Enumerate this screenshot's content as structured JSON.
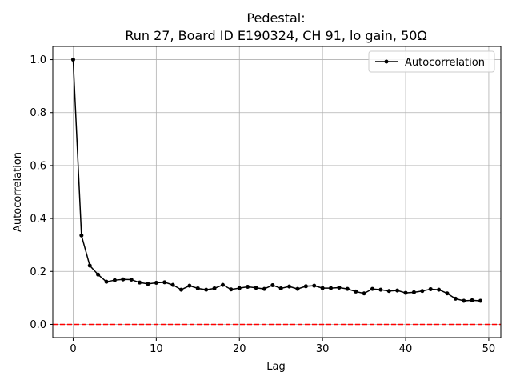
{
  "chart_data": {
    "type": "line",
    "title_line1": "Pedestal:",
    "title_line2": "Run 27, Board ID E190324, CH 91, lo gain, 50Ω",
    "xlabel": "Lag",
    "ylabel": "Autocorrelation",
    "xlim": [
      -2.45,
      51.45
    ],
    "ylim": [
      -0.05,
      1.05
    ],
    "x_ticks": [
      0,
      10,
      20,
      30,
      40,
      50
    ],
    "y_ticks": [
      0.0,
      0.2,
      0.4,
      0.6,
      0.8,
      1.0
    ],
    "x_tick_labels": [
      "0",
      "10",
      "20",
      "30",
      "40",
      "50"
    ],
    "y_tick_labels": [
      "0.0",
      "0.2",
      "0.4",
      "0.6",
      "0.8",
      "1.0"
    ],
    "grid": true,
    "legend_position": "top-right",
    "series": [
      {
        "name": "Autocorrelation",
        "color": "#000000",
        "marker": "circle",
        "x": [
          0,
          1,
          2,
          3,
          4,
          5,
          6,
          7,
          8,
          9,
          10,
          11,
          12,
          13,
          14,
          15,
          16,
          17,
          18,
          19,
          20,
          21,
          22,
          23,
          24,
          25,
          26,
          27,
          28,
          29,
          30,
          31,
          32,
          33,
          34,
          35,
          36,
          37,
          38,
          39,
          40,
          41,
          42,
          43,
          44,
          45,
          46,
          47,
          48,
          49
        ],
        "values": [
          1.0,
          0.336,
          0.222,
          0.188,
          0.161,
          0.167,
          0.17,
          0.169,
          0.158,
          0.153,
          0.157,
          0.159,
          0.149,
          0.131,
          0.146,
          0.136,
          0.131,
          0.136,
          0.149,
          0.132,
          0.137,
          0.142,
          0.138,
          0.134,
          0.148,
          0.136,
          0.143,
          0.134,
          0.144,
          0.146,
          0.137,
          0.137,
          0.139,
          0.134,
          0.124,
          0.117,
          0.134,
          0.131,
          0.126,
          0.128,
          0.119,
          0.121,
          0.126,
          0.133,
          0.131,
          0.117,
          0.097,
          0.089,
          0.091,
          0.089
        ]
      }
    ],
    "reference_line": {
      "y": 0.0,
      "color": "#ff0000",
      "style": "dashed"
    }
  }
}
